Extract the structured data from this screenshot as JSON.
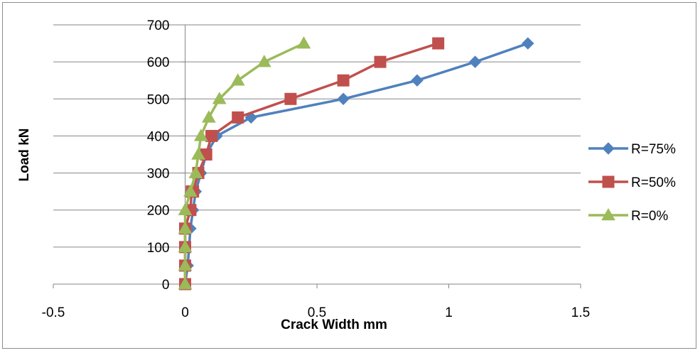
{
  "chart_data": {
    "type": "scatter",
    "title": "",
    "xlabel": "Crack Width  mm",
    "ylabel": "Load kN",
    "xlim": [
      -0.5,
      1.5
    ],
    "ylim": [
      0,
      700
    ],
    "x_ticks": [
      "-0.5",
      "0",
      "0.5",
      "1",
      "1.5"
    ],
    "y_ticks": [
      "0",
      "100",
      "200",
      "300",
      "400",
      "500",
      "600",
      "700"
    ],
    "grid": "horizontal",
    "legend_position": "right",
    "series": [
      {
        "name": "R=75%",
        "color": "#4f81bd",
        "marker": "diamond",
        "x": [
          0,
          0.01,
          0.02,
          0.03,
          0.04,
          0.06,
          0.08,
          0.12,
          0.25,
          0.6,
          0.88,
          1.1,
          1.3
        ],
        "y": [
          0,
          50,
          150,
          200,
          250,
          300,
          350,
          400,
          450,
          500,
          550,
          600,
          650
        ]
      },
      {
        "name": "R=50%",
        "color": "#c0504d",
        "marker": "square",
        "x": [
          0,
          0,
          0,
          0,
          0.02,
          0.025,
          0.03,
          0.05,
          0.08,
          0.1,
          0.2,
          0.4,
          0.6,
          0.74,
          0.96
        ],
        "y": [
          0,
          50,
          100,
          150,
          200,
          250,
          250,
          300,
          350,
          400,
          450,
          500,
          550,
          600,
          650
        ]
      },
      {
        "name": "R=0%",
        "color": "#9bbb59",
        "marker": "triangle",
        "x": [
          0,
          0,
          0,
          0,
          0,
          0.02,
          0.04,
          0.05,
          0.06,
          0.09,
          0.13,
          0.2,
          0.3,
          0.45
        ],
        "y": [
          0,
          50,
          100,
          150,
          200,
          250,
          300,
          350,
          400,
          450,
          500,
          550,
          600,
          650
        ]
      }
    ]
  }
}
